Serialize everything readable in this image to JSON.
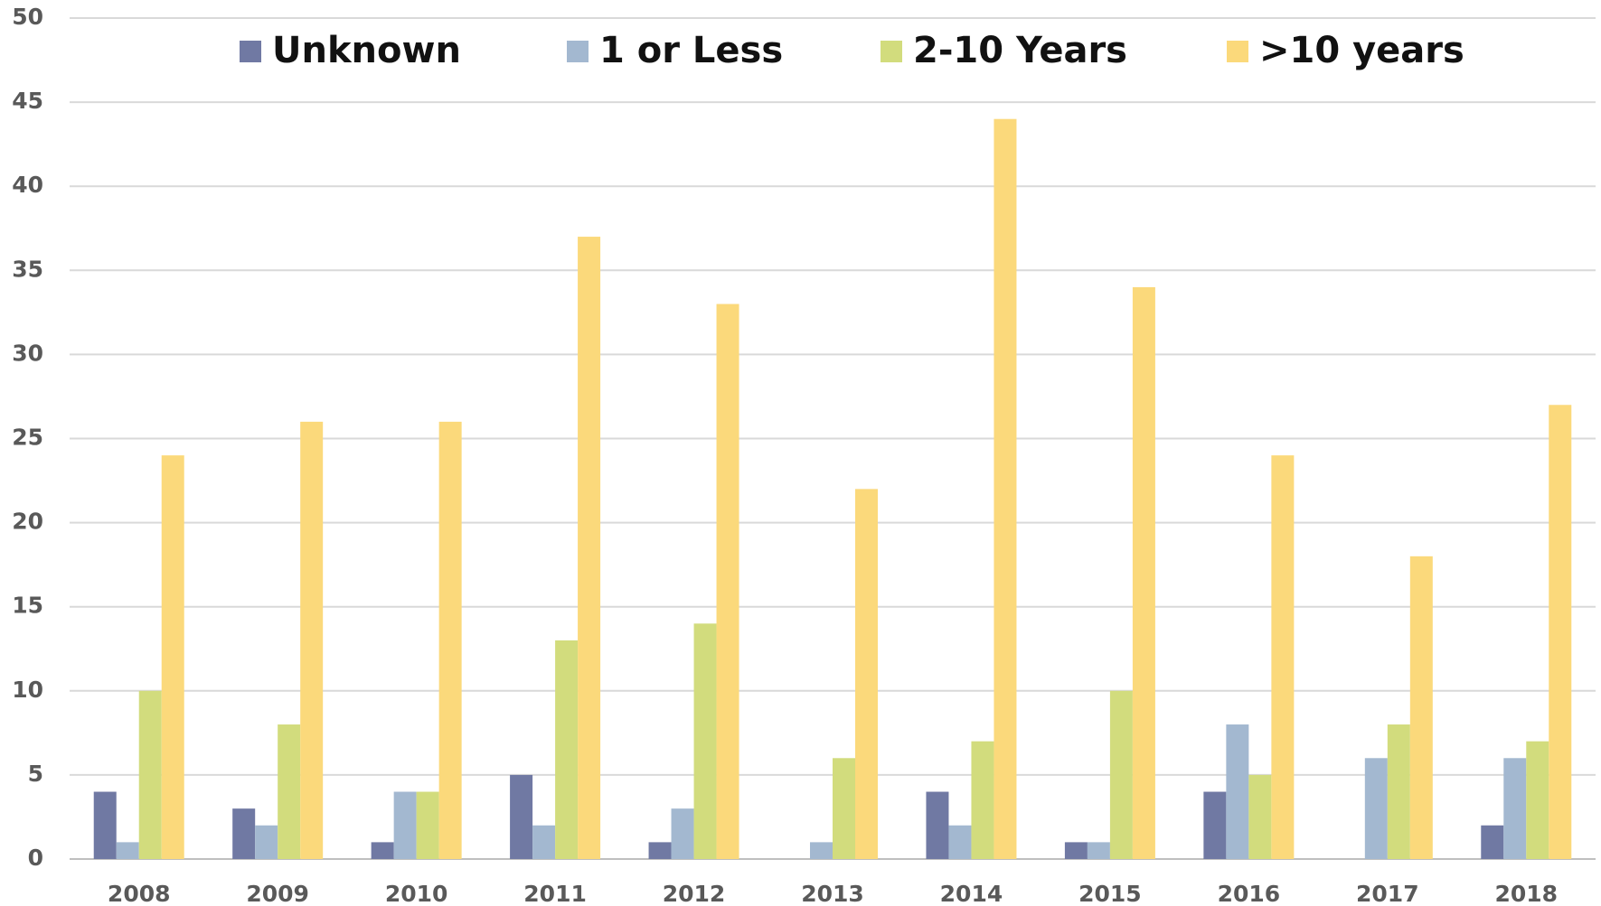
{
  "chart_data": {
    "type": "bar",
    "categories": [
      "2008",
      "2009",
      "2010",
      "2011",
      "2012",
      "2013",
      "2014",
      "2015",
      "2016",
      "2017",
      "2018"
    ],
    "series": [
      {
        "name": "Unknown",
        "color": "#7079a3",
        "values": [
          4,
          3,
          1,
          5,
          1,
          0,
          4,
          1,
          4,
          0,
          2
        ]
      },
      {
        "name": "1 or Less",
        "color": "#a3b8d0",
        "values": [
          1,
          2,
          4,
          2,
          3,
          1,
          2,
          1,
          8,
          6,
          6
        ]
      },
      {
        "name": "2-10 Years",
        "color": "#d2dc7d",
        "values": [
          10,
          8,
          4,
          13,
          14,
          6,
          7,
          10,
          5,
          8,
          7
        ]
      },
      {
        "name": ">10 years",
        "color": "#fbd97b",
        "values": [
          24,
          26,
          26,
          37,
          33,
          22,
          44,
          34,
          24,
          18,
          27
        ]
      }
    ],
    "ylim": [
      0,
      50
    ],
    "yticks": [
      0,
      5,
      10,
      15,
      20,
      25,
      30,
      35,
      40,
      45,
      50
    ],
    "grid": true,
    "legend": "top"
  }
}
